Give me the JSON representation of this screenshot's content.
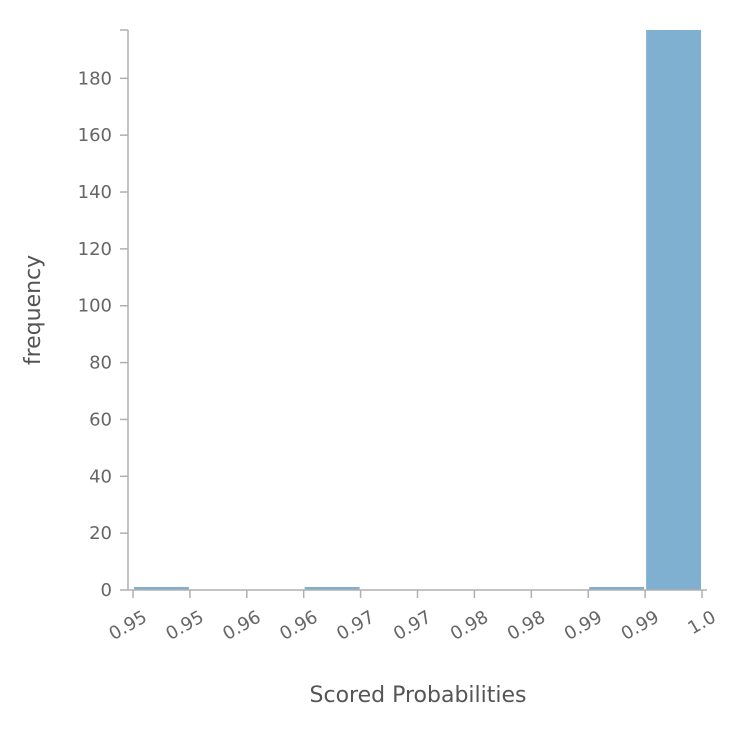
{
  "chart_data": {
    "type": "bar",
    "title": "",
    "xlabel": "Scored Probabilities",
    "ylabel": "frequency",
    "color": "#7fb0d0",
    "x_tick_labels": [
      "0.95",
      "0.95",
      "0.96",
      "0.96",
      "0.97",
      "0.97",
      "0.98",
      "0.98",
      "0.99",
      "0.99",
      "1.0"
    ],
    "y_ticks": [
      0,
      20,
      40,
      60,
      80,
      100,
      120,
      140,
      160,
      180
    ],
    "ylim": [
      0,
      197
    ],
    "bins": [
      {
        "start": 0.95,
        "end": 0.955,
        "count": 1
      },
      {
        "start": 0.955,
        "end": 0.96,
        "count": 0
      },
      {
        "start": 0.96,
        "end": 0.965,
        "count": 0
      },
      {
        "start": 0.965,
        "end": 0.97,
        "count": 1
      },
      {
        "start": 0.97,
        "end": 0.975,
        "count": 0
      },
      {
        "start": 0.975,
        "end": 0.98,
        "count": 0
      },
      {
        "start": 0.98,
        "end": 0.985,
        "count": 0
      },
      {
        "start": 0.985,
        "end": 0.99,
        "count": 0
      },
      {
        "start": 0.99,
        "end": 0.995,
        "count": 1
      },
      {
        "start": 0.995,
        "end": 1.0,
        "count": 197
      }
    ],
    "grid": false,
    "legend": "none"
  }
}
